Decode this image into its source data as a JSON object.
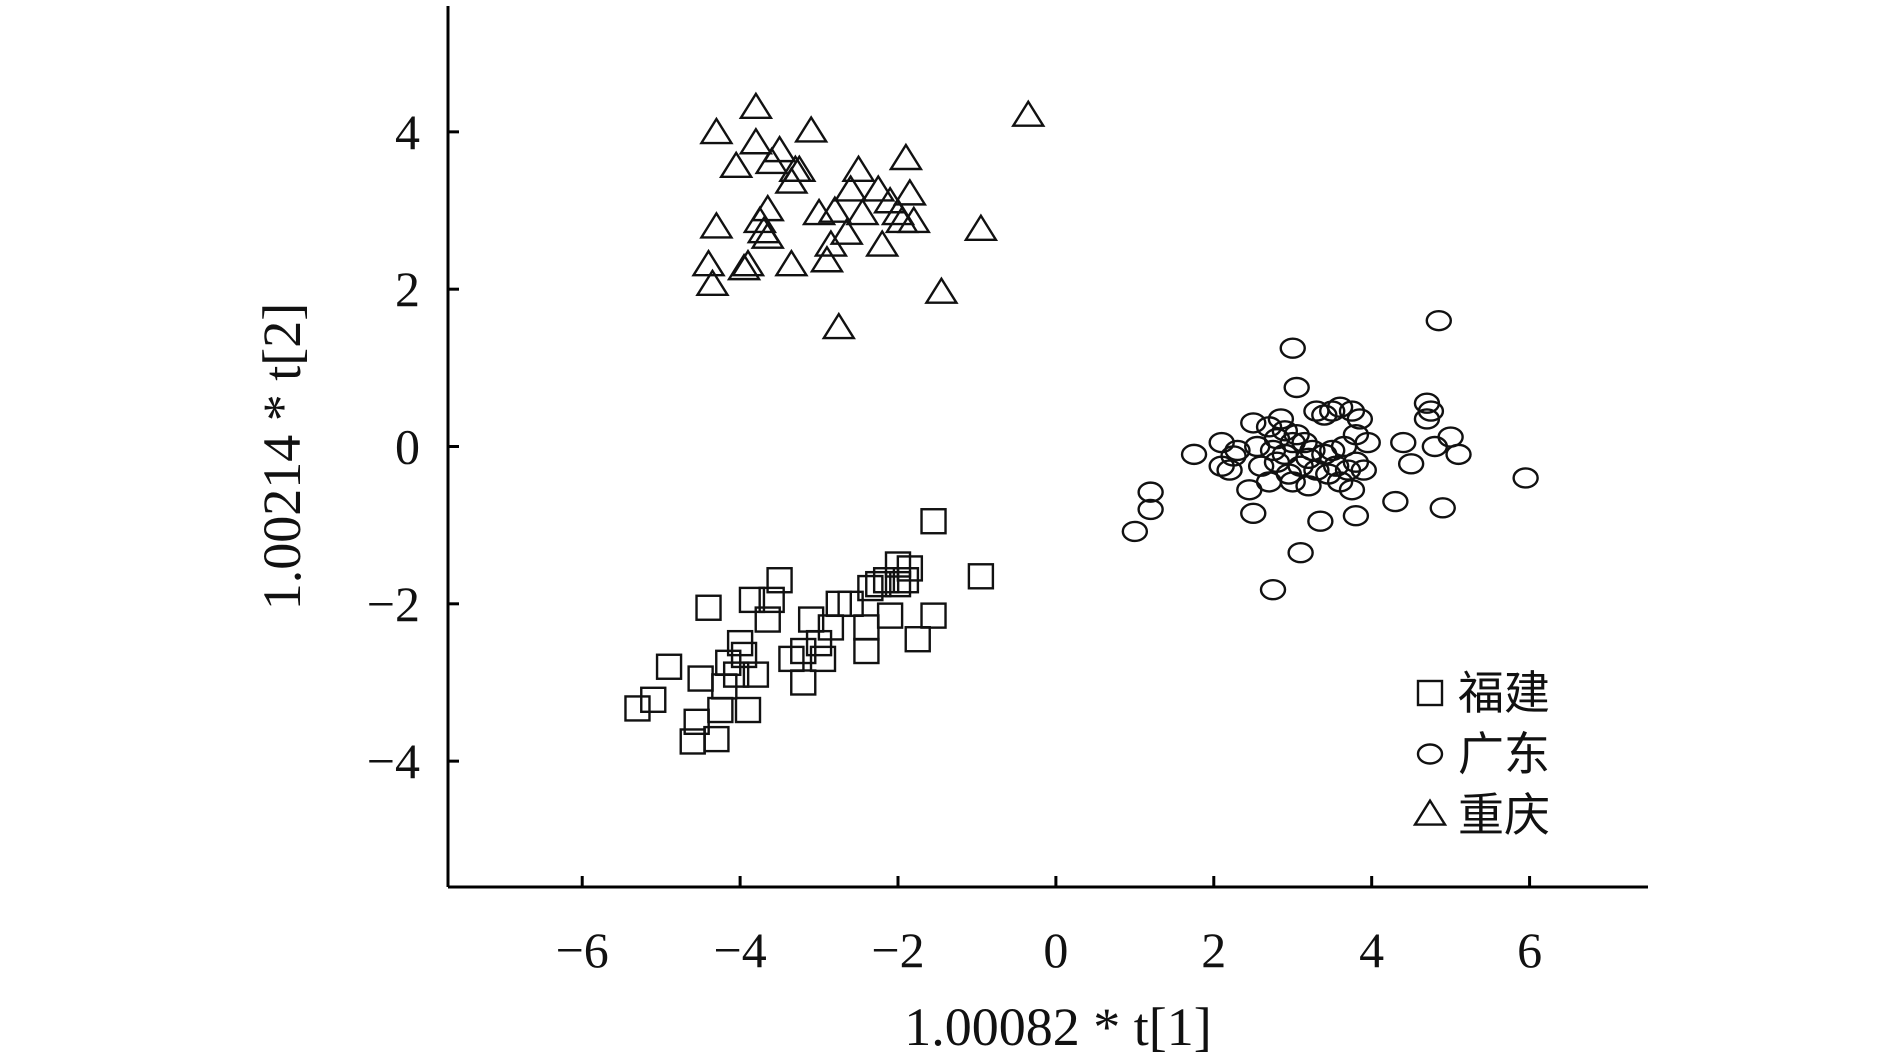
{
  "chart_data": {
    "type": "scatter",
    "title": "",
    "xlabel": "1.00082 * t[1]",
    "ylabel": "1.00214 * t[2]",
    "xlim": [
      -7.7,
      7.5
    ],
    "ylim": [
      -5.6,
      5.6
    ],
    "xticks": [
      -6,
      -4,
      -2,
      0,
      2,
      4,
      6
    ],
    "yticks": [
      -4,
      -2,
      0,
      2,
      4
    ],
    "xtick_labels": [
      "−6",
      "−4",
      "−2",
      "0",
      "2",
      "4",
      "6"
    ],
    "ytick_labels": [
      "−4",
      "−2",
      "0",
      "2",
      "4"
    ],
    "grid": false,
    "legend_position": "bottom-right",
    "series": [
      {
        "name": "福建",
        "marker": "square",
        "points": [
          [
            -5.3,
            -3.33
          ],
          [
            -5.1,
            -3.22
          ],
          [
            -4.9,
            -2.8
          ],
          [
            -4.6,
            -3.75
          ],
          [
            -4.55,
            -3.5
          ],
          [
            -4.5,
            -2.95
          ],
          [
            -4.4,
            -2.05
          ],
          [
            -4.3,
            -3.72
          ],
          [
            -4.25,
            -3.35
          ],
          [
            -4.2,
            -3.05
          ],
          [
            -4.15,
            -2.75
          ],
          [
            -4.05,
            -2.9
          ],
          [
            -4.0,
            -2.5
          ],
          [
            -3.95,
            -2.65
          ],
          [
            -3.9,
            -3.35
          ],
          [
            -3.85,
            -1.95
          ],
          [
            -3.8,
            -2.9
          ],
          [
            -3.65,
            -2.2
          ],
          [
            -3.6,
            -1.95
          ],
          [
            -3.5,
            -1.7
          ],
          [
            -3.35,
            -2.7
          ],
          [
            -3.2,
            -2.6
          ],
          [
            -3.2,
            -3.0
          ],
          [
            -3.1,
            -2.2
          ],
          [
            -3.0,
            -2.5
          ],
          [
            -2.95,
            -2.7
          ],
          [
            -2.85,
            -2.3
          ],
          [
            -2.75,
            -2.0
          ],
          [
            -2.6,
            -2.0
          ],
          [
            -2.4,
            -2.6
          ],
          [
            -2.4,
            -2.3
          ],
          [
            -2.35,
            -1.8
          ],
          [
            -2.25,
            -1.75
          ],
          [
            -2.15,
            -1.7
          ],
          [
            -2.1,
            -2.15
          ],
          [
            -2.0,
            -1.5
          ],
          [
            -2.0,
            -1.75
          ],
          [
            -1.9,
            -1.7
          ],
          [
            -1.85,
            -1.55
          ],
          [
            -1.75,
            -2.45
          ],
          [
            -1.55,
            -2.15
          ],
          [
            -1.55,
            -0.95
          ],
          [
            -0.95,
            -1.65
          ]
        ]
      },
      {
        "name": "广东",
        "marker": "circle",
        "points": [
          [
            1.0,
            -1.08
          ],
          [
            1.2,
            -0.8
          ],
          [
            1.2,
            -0.58
          ],
          [
            1.75,
            -0.1
          ],
          [
            2.1,
            0.05
          ],
          [
            2.1,
            -0.25
          ],
          [
            2.2,
            -0.3
          ],
          [
            2.25,
            -0.12
          ],
          [
            2.3,
            -0.05
          ],
          [
            2.45,
            -0.55
          ],
          [
            2.5,
            0.3
          ],
          [
            2.5,
            -0.85
          ],
          [
            2.55,
            0.0
          ],
          [
            2.6,
            -0.25
          ],
          [
            2.7,
            0.25
          ],
          [
            2.7,
            -0.45
          ],
          [
            2.75,
            -1.82
          ],
          [
            2.75,
            -0.05
          ],
          [
            2.8,
            0.1
          ],
          [
            2.8,
            -0.2
          ],
          [
            2.85,
            0.35
          ],
          [
            2.9,
            -0.1
          ],
          [
            2.9,
            0.2
          ],
          [
            2.95,
            -0.35
          ],
          [
            3.0,
            0.05
          ],
          [
            3.0,
            -0.45
          ],
          [
            3.0,
            1.25
          ],
          [
            3.05,
            0.75
          ],
          [
            3.05,
            0.15
          ],
          [
            3.1,
            -0.25
          ],
          [
            3.1,
            -1.35
          ],
          [
            3.15,
            0.05
          ],
          [
            3.2,
            -0.15
          ],
          [
            3.2,
            -0.5
          ],
          [
            3.25,
            -0.05
          ],
          [
            3.3,
            0.45
          ],
          [
            3.3,
            -0.3
          ],
          [
            3.35,
            -0.95
          ],
          [
            3.4,
            0.4
          ],
          [
            3.4,
            -0.1
          ],
          [
            3.45,
            -0.35
          ],
          [
            3.5,
            0.45
          ],
          [
            3.5,
            -0.05
          ],
          [
            3.55,
            -0.25
          ],
          [
            3.6,
            -0.45
          ],
          [
            3.6,
            0.5
          ],
          [
            3.65,
            0.0
          ],
          [
            3.7,
            -0.3
          ],
          [
            3.75,
            0.45
          ],
          [
            3.75,
            -0.55
          ],
          [
            3.8,
            -0.2
          ],
          [
            3.8,
            0.15
          ],
          [
            3.8,
            -0.88
          ],
          [
            3.85,
            0.35
          ],
          [
            3.9,
            -0.3
          ],
          [
            3.95,
            0.05
          ],
          [
            4.3,
            -0.7
          ],
          [
            4.4,
            0.05
          ],
          [
            4.5,
            -0.22
          ],
          [
            4.7,
            0.55
          ],
          [
            4.7,
            0.35
          ],
          [
            4.75,
            0.45
          ],
          [
            4.8,
            0.0
          ],
          [
            4.85,
            1.6
          ],
          [
            4.9,
            -0.78
          ],
          [
            5.0,
            0.12
          ],
          [
            5.1,
            -0.1
          ],
          [
            5.95,
            -0.4
          ]
        ]
      },
      {
        "name": "重庆",
        "marker": "triangle",
        "points": [
          [
            -4.4,
            2.3
          ],
          [
            -4.35,
            2.05
          ],
          [
            -4.3,
            2.78
          ],
          [
            -4.3,
            3.98
          ],
          [
            -4.05,
            3.55
          ],
          [
            -3.95,
            2.25
          ],
          [
            -3.9,
            2.3
          ],
          [
            -3.8,
            4.3
          ],
          [
            -3.8,
            3.85
          ],
          [
            -3.75,
            2.85
          ],
          [
            -3.7,
            2.72
          ],
          [
            -3.65,
            2.65
          ],
          [
            -3.65,
            3.0
          ],
          [
            -3.6,
            3.6
          ],
          [
            -3.5,
            3.75
          ],
          [
            -3.35,
            2.3
          ],
          [
            -3.35,
            3.35
          ],
          [
            -3.3,
            3.5
          ],
          [
            -3.25,
            3.5
          ],
          [
            -3.1,
            4.0
          ],
          [
            -3.0,
            2.95
          ],
          [
            -2.9,
            2.35
          ],
          [
            -2.85,
            2.55
          ],
          [
            -2.8,
            2.98
          ],
          [
            -2.75,
            1.5
          ],
          [
            -2.65,
            2.7
          ],
          [
            -2.6,
            3.25
          ],
          [
            -2.5,
            3.5
          ],
          [
            -2.45,
            2.95
          ],
          [
            -2.25,
            3.25
          ],
          [
            -2.2,
            2.55
          ],
          [
            -2.1,
            3.1
          ],
          [
            -2.0,
            2.95
          ],
          [
            -1.95,
            2.85
          ],
          [
            -1.9,
            3.65
          ],
          [
            -1.85,
            3.2
          ],
          [
            -1.8,
            2.85
          ],
          [
            -1.45,
            1.95
          ],
          [
            -0.95,
            2.75
          ],
          [
            -0.35,
            4.2
          ]
        ]
      }
    ]
  }
}
